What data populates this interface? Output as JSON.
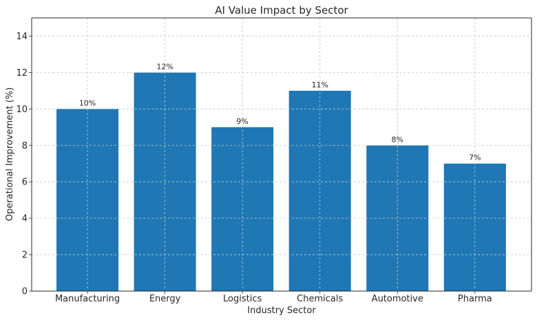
{
  "chart_data": {
    "type": "bar",
    "title": "AI Value Impact by Sector",
    "xlabel": "Industry Sector",
    "ylabel": "Operational Improvement (%)",
    "categories": [
      "Manufacturing",
      "Energy",
      "Logistics",
      "Chemicals",
      "Automotive",
      "Pharma"
    ],
    "values": [
      10,
      12,
      9,
      11,
      8,
      7
    ],
    "data_labels": [
      "10%",
      "12%",
      "9%",
      "11%",
      "8%",
      "7%"
    ],
    "ylim": [
      0,
      15
    ],
    "yticks": [
      0,
      2,
      4,
      6,
      8,
      10,
      12,
      14
    ],
    "grid": true,
    "bar_color": "#1f77b4"
  }
}
